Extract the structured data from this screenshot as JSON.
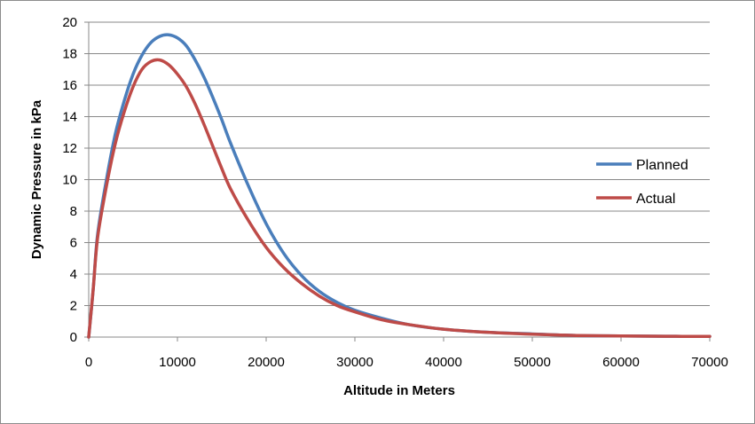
{
  "chart_data": {
    "type": "line",
    "xlabel": "Altitude in Meters",
    "ylabel": "Dynamic Pressure in kPa",
    "xlim": [
      0,
      70000
    ],
    "ylim": [
      0,
      20
    ],
    "xticks": [
      "0",
      "10000",
      "20000",
      "30000",
      "40000",
      "50000",
      "60000",
      "70000"
    ],
    "yticks": [
      "0",
      "2",
      "4",
      "6",
      "8",
      "10",
      "12",
      "14",
      "16",
      "18",
      "20"
    ],
    "grid": "horizontal",
    "legend_position": "right",
    "series": [
      {
        "name": "Planned",
        "color": "#4a7ebb",
        "x": [
          0,
          500,
          1000,
          2000,
          3000,
          4000,
          5000,
          6000,
          7000,
          8000,
          9000,
          10000,
          11000,
          12000,
          13000,
          14000,
          15000,
          16000,
          18000,
          20000,
          22000,
          24000,
          26000,
          28000,
          30000,
          33000,
          36000,
          40000,
          45000,
          50000,
          55000,
          60000,
          65000,
          70000
        ],
        "y": [
          0,
          3,
          6.5,
          10,
          12.9,
          15,
          16.7,
          17.9,
          18.7,
          19.1,
          19.2,
          19.0,
          18.5,
          17.6,
          16.5,
          15.2,
          13.8,
          12.3,
          9.6,
          7.2,
          5.3,
          3.9,
          2.9,
          2.2,
          1.7,
          1.2,
          0.8,
          0.5,
          0.3,
          0.2,
          0.1,
          0.07,
          0.05,
          0.04
        ]
      },
      {
        "name": "Actual",
        "color": "#be4b48",
        "x": [
          0,
          500,
          1000,
          2000,
          3000,
          4000,
          5000,
          6000,
          7000,
          8000,
          9000,
          10000,
          11000,
          12000,
          13000,
          14000,
          15000,
          16000,
          18000,
          20000,
          22000,
          24000,
          26000,
          28000,
          30000,
          33000,
          36000,
          40000,
          45000,
          50000,
          55000,
          60000,
          65000,
          70000
        ],
        "y": [
          0,
          3,
          6.3,
          9.6,
          12.3,
          14.3,
          15.9,
          17.0,
          17.5,
          17.6,
          17.3,
          16.7,
          15.9,
          14.8,
          13.5,
          12.1,
          10.7,
          9.4,
          7.4,
          5.7,
          4.4,
          3.4,
          2.6,
          2.0,
          1.6,
          1.1,
          0.8,
          0.5,
          0.3,
          0.18,
          0.1,
          0.07,
          0.05,
          0.04
        ]
      }
    ]
  }
}
